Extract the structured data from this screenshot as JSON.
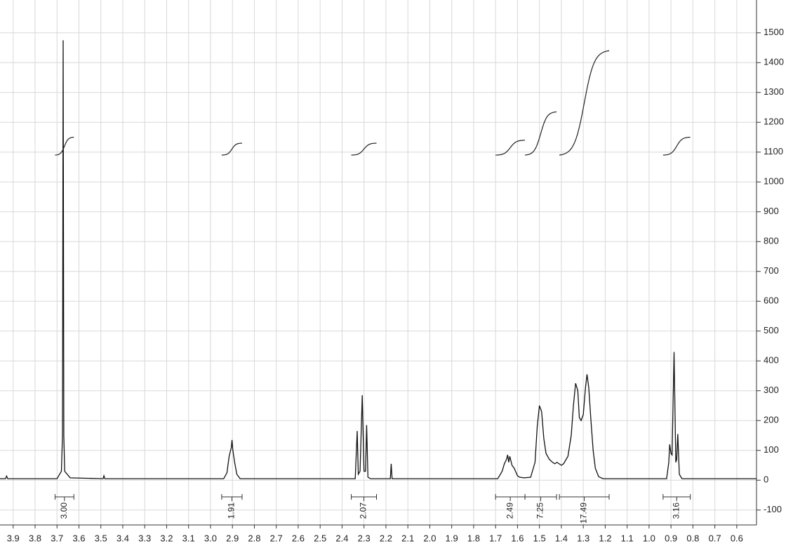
{
  "chart_data": {
    "type": "line",
    "xlim": [
      3.96,
      0.51
    ],
    "ylim": [
      -150,
      1610
    ],
    "xticks": [
      3.9,
      3.8,
      3.7,
      3.6,
      3.5,
      3.4,
      3.3,
      3.2,
      3.1,
      {
        "value": 3,
        "label": "3.0"
      },
      2.9,
      2.8,
      2.7,
      2.6,
      2.5,
      2.4,
      2.3,
      2.2,
      2.1,
      {
        "value": 2,
        "label": "2.0"
      },
      1.9,
      1.8,
      1.7,
      1.6,
      1.5,
      1.4,
      1.3,
      1.2,
      1.1,
      {
        "value": 1,
        "label": "1.0"
      },
      0.9,
      0.8,
      0.7,
      0.6
    ],
    "yticks": [
      -100,
      0,
      100,
      200,
      300,
      400,
      500,
      600,
      700,
      800,
      900,
      1000,
      1100,
      1200,
      1300,
      1400,
      1500
    ],
    "grid": true,
    "series": [
      {
        "color": "#111111",
        "x": [
          3.96,
          3.935,
          3.93,
          3.925,
          3.7,
          3.68,
          3.675,
          3.672,
          3.669,
          3.665,
          3.64,
          3.49,
          3.486,
          3.482,
          2.94,
          2.925,
          2.915,
          2.91,
          2.905,
          2.902,
          2.898,
          2.89,
          2.88,
          2.865,
          2.34,
          2.331,
          2.326,
          2.318,
          2.308,
          2.3,
          2.293,
          2.288,
          2.282,
          2.27,
          2.18,
          2.176,
          2.172,
          1.69,
          1.67,
          1.66,
          1.65,
          1.645,
          1.64,
          1.635,
          1.625,
          1.615,
          1.6,
          1.59,
          1.57,
          1.54,
          1.52,
          1.51,
          1.5,
          1.49,
          1.48,
          1.47,
          1.455,
          1.44,
          1.43,
          1.42,
          1.41,
          1.4,
          1.39,
          1.37,
          1.355,
          1.345,
          1.335,
          1.325,
          1.318,
          1.31,
          1.3,
          1.29,
          1.283,
          1.275,
          1.265,
          1.255,
          1.245,
          1.23,
          1.21,
          0.92,
          0.91,
          0.906,
          0.9,
          0.895,
          0.886,
          0.878,
          0.874,
          0.869,
          0.862,
          0.85,
          0.51
        ],
        "values": [
          5,
          5,
          14,
          5,
          5,
          30,
          150,
          1475,
          150,
          30,
          8,
          5,
          15,
          5,
          5,
          25,
          80,
          95,
          110,
          135,
          100,
          60,
          20,
          5,
          5,
          165,
          20,
          30,
          285,
          30,
          30,
          185,
          10,
          5,
          5,
          55,
          5,
          5,
          30,
          55,
          70,
          85,
          60,
          80,
          50,
          40,
          15,
          10,
          8,
          10,
          60,
          180,
          250,
          230,
          140,
          90,
          70,
          60,
          55,
          60,
          55,
          50,
          55,
          80,
          150,
          250,
          325,
          300,
          210,
          200,
          220,
          310,
          355,
          310,
          200,
          100,
          40,
          12,
          5,
          5,
          60,
          120,
          90,
          85,
          430,
          60,
          70,
          155,
          20,
          5,
          5
        ]
      }
    ],
    "integrals": [
      {
        "range": [
          3.709,
          3.623
        ],
        "curve": [
          1090,
          1150
        ],
        "value": 3,
        "label": "3.00"
      },
      {
        "range": [
          2.949,
          2.856
        ],
        "curve": [
          1090,
          1130
        ],
        "value": 1.91,
        "label": "1.91"
      },
      {
        "range": [
          2.358,
          2.243
        ],
        "curve": [
          1090,
          1130
        ],
        "value": 2.07,
        "label": "2.07"
      },
      {
        "range": [
          1.7,
          1.566
        ],
        "curve": [
          1090,
          1140
        ],
        "value": 2.49,
        "label": "2.49"
      },
      {
        "range": [
          1.566,
          1.422
        ],
        "curve": [
          1090,
          1235
        ],
        "value": 7.25,
        "label": "7.25"
      },
      {
        "range": [
          1.409,
          1.182
        ],
        "curve": [
          1090,
          1440
        ],
        "value": 17.49,
        "label": "17.49"
      },
      {
        "range": [
          0.936,
          0.812
        ],
        "curve": [
          1090,
          1150
        ],
        "value": 3.16,
        "label": "3.16"
      }
    ]
  }
}
